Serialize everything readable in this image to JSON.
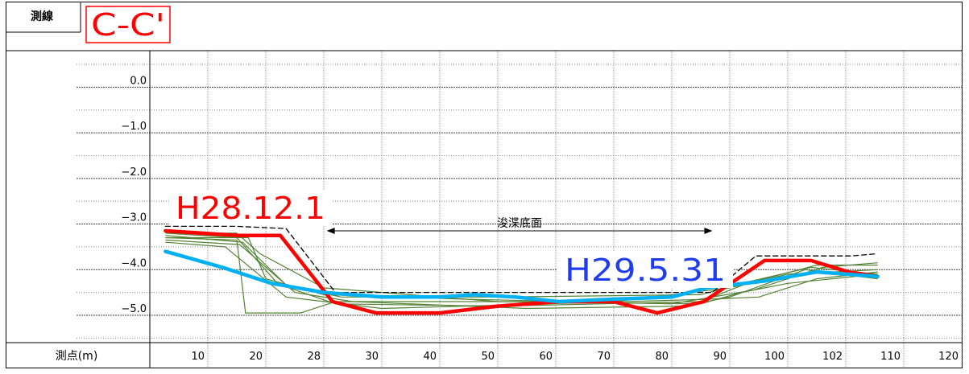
{
  "header": {
    "survey_line_label": "測線",
    "section_label": "C-C'"
  },
  "chart_data": {
    "type": "line",
    "title": "C-C'",
    "xlabel": "測点(m)",
    "ylabel": "",
    "x_ticks": [
      "10",
      "20",
      "28",
      "30",
      "40",
      "50",
      "60",
      "70",
      "80",
      "90",
      "100",
      "102",
      "110",
      "120"
    ],
    "y_ticks": [
      "0.0",
      "−1.0",
      "−2.0",
      "−3.0",
      "−4.0",
      "−5.0"
    ],
    "ylim": [
      -5.6,
      0.8
    ],
    "grid": true,
    "series": [
      {
        "name": "H28.12.1",
        "color": "#ff0000",
        "points": [
          [
            0.27,
            -3.15
          ],
          [
            1.5,
            -3.25
          ],
          [
            2.25,
            -3.25
          ],
          [
            3.15,
            -4.7
          ],
          [
            3.9,
            -4.95
          ],
          [
            5.0,
            -4.95
          ],
          [
            6.0,
            -4.8
          ],
          [
            7.05,
            -4.7
          ],
          [
            8.0,
            -4.7
          ],
          [
            8.75,
            -4.95
          ],
          [
            9.55,
            -4.7
          ],
          [
            10.6,
            -3.8
          ],
          [
            11.4,
            -3.8
          ],
          [
            12.05,
            -4.05
          ],
          [
            12.55,
            -4.15
          ]
        ]
      },
      {
        "name": "H29.5.31",
        "color": "#00b0f0",
        "points": [
          [
            0.27,
            -3.6
          ],
          [
            1.25,
            -3.95
          ],
          [
            2.1,
            -4.3
          ],
          [
            3.0,
            -4.5
          ],
          [
            4.0,
            -4.6
          ],
          [
            5.0,
            -4.6
          ],
          [
            5.6,
            -4.55
          ],
          [
            6.3,
            -4.6
          ],
          [
            7.05,
            -4.7
          ],
          [
            7.95,
            -4.65
          ],
          [
            9.0,
            -4.6
          ],
          [
            9.6,
            -4.4
          ],
          [
            10.6,
            -4.25
          ],
          [
            11.5,
            -4.05
          ],
          [
            12.55,
            -4.15
          ]
        ]
      },
      {
        "name": "",
        "color": "#000000",
        "dash": true,
        "points": [
          [
            0.27,
            -3.05
          ],
          [
            1.5,
            -3.05
          ],
          [
            2.35,
            -3.1
          ],
          [
            3.2,
            -4.5
          ],
          [
            9.7,
            -4.5
          ],
          [
            10.45,
            -3.7
          ],
          [
            12.1,
            -3.7
          ],
          [
            12.55,
            -3.65
          ]
        ]
      }
    ],
    "history_series_color": "#548235",
    "history_series": [
      [
        [
          0.27,
          -3.2
        ],
        [
          1.5,
          -3.3
        ],
        [
          2.2,
          -4.3
        ],
        [
          3.3,
          -4.6
        ],
        [
          6.0,
          -4.6
        ],
        [
          9.5,
          -4.55
        ],
        [
          10.2,
          -4.3
        ],
        [
          11.4,
          -3.95
        ],
        [
          12.55,
          -4.1
        ]
      ],
      [
        [
          0.27,
          -3.25
        ],
        [
          1.6,
          -3.4
        ],
        [
          2.4,
          -4.4
        ],
        [
          3.2,
          -4.75
        ],
        [
          6.0,
          -4.8
        ],
        [
          9.5,
          -4.7
        ],
        [
          10.3,
          -4.3
        ],
        [
          11.5,
          -3.9
        ],
        [
          12.55,
          -3.9
        ]
      ],
      [
        [
          0.27,
          -3.3
        ],
        [
          1.7,
          -3.3
        ],
        [
          2.0,
          -4.2
        ],
        [
          3.0,
          -4.55
        ],
        [
          5.5,
          -4.65
        ],
        [
          9.0,
          -4.75
        ],
        [
          10.4,
          -4.45
        ],
        [
          11.6,
          -3.95
        ],
        [
          12.55,
          -3.85
        ]
      ],
      [
        [
          0.27,
          -3.35
        ],
        [
          1.55,
          -3.45
        ],
        [
          2.5,
          -4.5
        ],
        [
          3.5,
          -4.7
        ],
        [
          6.5,
          -4.85
        ],
        [
          9.2,
          -4.8
        ],
        [
          10.0,
          -4.6
        ],
        [
          11.3,
          -4.0
        ],
        [
          12.55,
          -4.2
        ]
      ],
      [
        [
          0.27,
          -3.4
        ],
        [
          1.3,
          -3.5
        ],
        [
          2.35,
          -4.6
        ],
        [
          4.0,
          -4.85
        ],
        [
          6.8,
          -4.75
        ],
        [
          9.6,
          -4.65
        ],
        [
          10.5,
          -4.6
        ],
        [
          11.5,
          -4.2
        ],
        [
          12.55,
          -4.05
        ]
      ],
      [
        [
          0.27,
          -3.3
        ],
        [
          1.5,
          -3.35
        ],
        [
          1.65,
          -4.95
        ],
        [
          2.6,
          -4.95
        ],
        [
          3.2,
          -4.7
        ],
        [
          5.0,
          -4.7
        ],
        [
          8.0,
          -4.7
        ],
        [
          10.0,
          -4.4
        ],
        [
          11.0,
          -4.1
        ],
        [
          12.55,
          -4.0
        ]
      ],
      [
        [
          0.27,
          -3.2
        ],
        [
          1.5,
          -3.2
        ],
        [
          1.9,
          -3.65
        ],
        [
          3.0,
          -4.4
        ],
        [
          6.0,
          -4.7
        ],
        [
          9.5,
          -4.75
        ],
        [
          10.2,
          -4.5
        ],
        [
          11.0,
          -4.3
        ],
        [
          12.55,
          -4.1
        ]
      ]
    ],
    "annotations": {
      "dredge_label": "浚渫底面",
      "dredge_from_x": 3.05,
      "dredge_to_x": 9.7,
      "dredge_y": -3.15,
      "label_h28": "H28.12.1",
      "label_h29": "H29.5.31"
    }
  }
}
